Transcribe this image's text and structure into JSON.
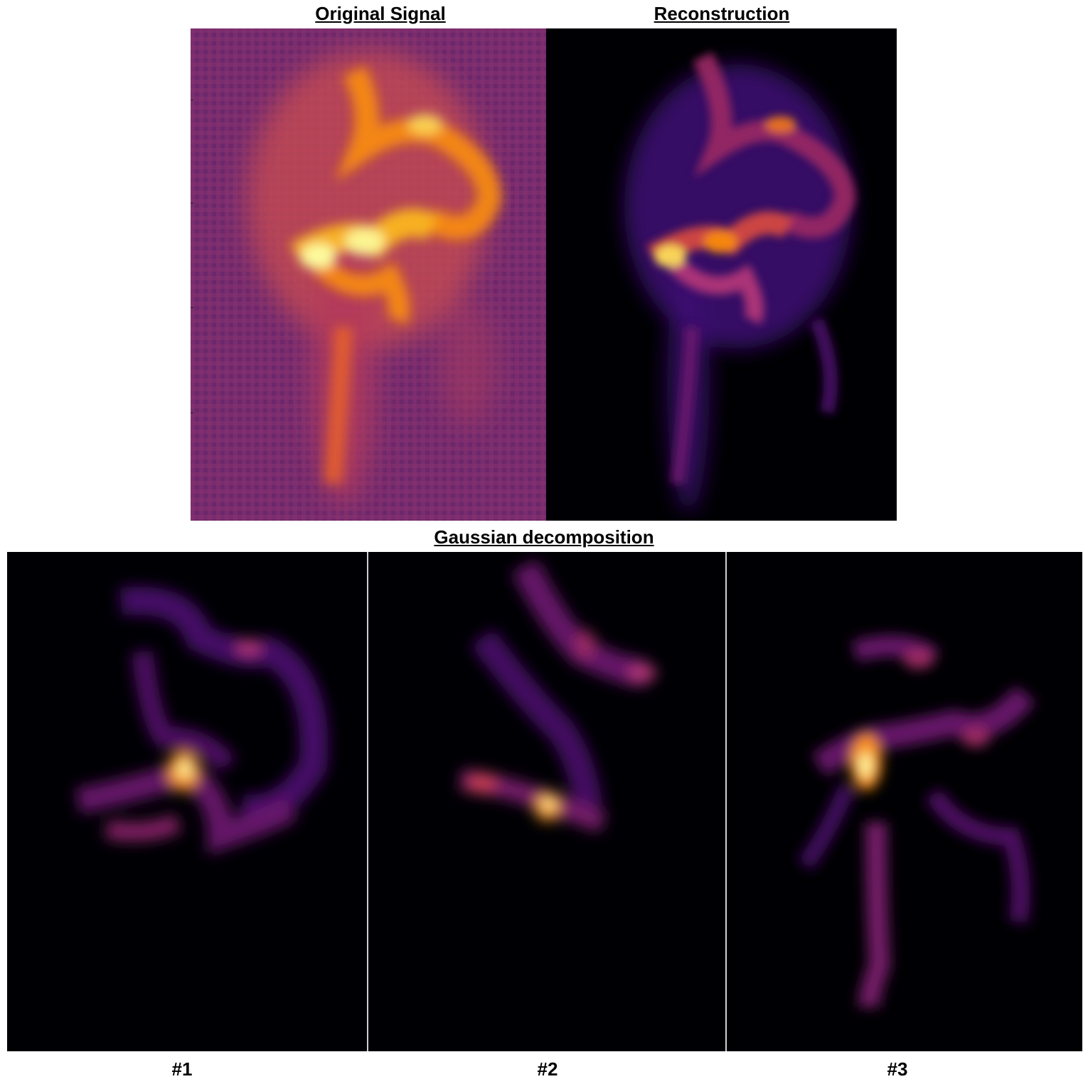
{
  "top": {
    "left_title": "Original Signal",
    "right_title": "Reconstruction"
  },
  "bottom": {
    "title": "Gaussian decomposition",
    "panels": [
      {
        "label": "#1"
      },
      {
        "label": "#2"
      },
      {
        "label": "#3"
      }
    ]
  },
  "colormap": "inferno",
  "colors": {
    "background_dark": "#000004",
    "original_background": "#7a2d6e",
    "bright": "#fcffa4",
    "orange": "#f98e09",
    "purple": "#6a176e"
  }
}
